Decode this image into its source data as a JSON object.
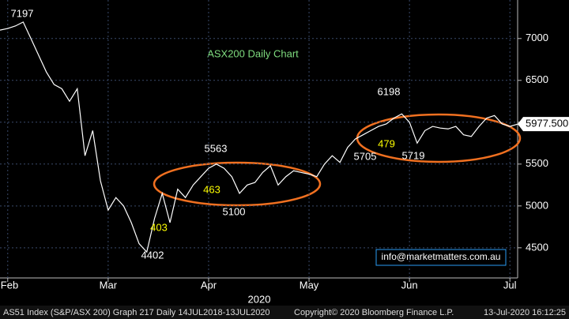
{
  "chart_data": {
    "type": "line",
    "title": "ASX200 Daily Chart",
    "series": [
      {
        "name": "AS51 Index",
        "color": "#ffffff",
        "values": [
          7100,
          7120,
          7150,
          7197,
          7000,
          6800,
          6600,
          6450,
          6400,
          6250,
          6400,
          5600,
          5900,
          5300,
          4950,
          5100,
          5000,
          4800,
          4550,
          4450,
          4850,
          5150,
          4800,
          5200,
          5100,
          5250,
          5350,
          5450,
          5500,
          5450,
          5350,
          5150,
          5250,
          5280,
          5400,
          5480,
          5250,
          5350,
          5420,
          5400,
          5380,
          5350,
          5500,
          5600,
          5520,
          5700,
          5800,
          5850,
          5900,
          5950,
          5980,
          6050,
          6100,
          6000,
          5750,
          5900,
          5950,
          5930,
          5920,
          5950,
          5850,
          5830,
          5950,
          6050,
          6080,
          5980,
          5950,
          5977.5
        ]
      }
    ],
    "xlim": [
      0,
      67
    ],
    "xticks": [
      {
        "value": 1,
        "label": "Feb"
      },
      {
        "value": 14,
        "label": "Mar"
      },
      {
        "value": 27,
        "label": "Apr"
      },
      {
        "value": 40,
        "label": "May"
      },
      {
        "value": 53,
        "label": "Jun"
      },
      {
        "value": 66,
        "label": "Jul"
      }
    ],
    "x_label": "2020",
    "ylim": [
      4140,
      7460
    ],
    "yticks": [
      4500,
      5000,
      5500,
      6000,
      6500,
      7000
    ],
    "grid": true,
    "last_price": {
      "value": 5977.5,
      "label": "5977.500"
    },
    "annotations": [
      "7197",
      "6198",
      "5563",
      "5100",
      "5705",
      "5719",
      "4402",
      "403",
      "463",
      "479"
    ],
    "source": "info@marketmatters.com.au"
  },
  "footer": {
    "left": "AS51 Index (S&P/ASX 200) Graph 217  Daily 14JUL2018-13JUL2020",
    "middle": "Copyright© 2020 Bloomberg Finance L.P.",
    "right": "13-Jul-2020 16:12:25"
  }
}
